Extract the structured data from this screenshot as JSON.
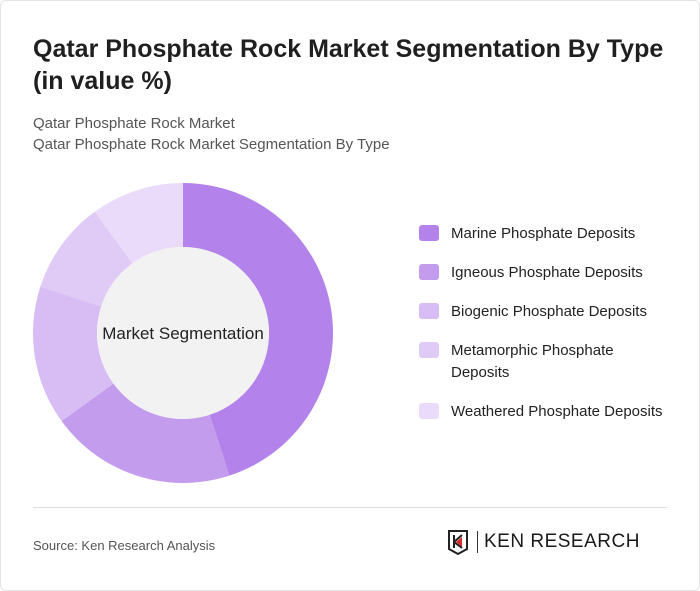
{
  "title": "Qatar Phosphate Rock Market Segmentation By Type (in value %)",
  "subtitle1": "Qatar Phosphate Rock Market",
  "subtitle2": "Qatar Phosphate Rock Market Segmentation By Type",
  "source": "Source: Ken Research Analysis",
  "logo_text": "KEN RESEARCH",
  "chart_data": {
    "type": "donut",
    "center_label": "Market Segmentation",
    "legend_position": "right",
    "categories": [
      "Marine Phosphate Deposits",
      "Igneous Phosphate Deposits",
      "Biogenic Phosphate Deposits",
      "Metamorphic Phosphate Deposits",
      "Weathered Phosphate Deposits"
    ],
    "values": [
      45,
      20,
      15,
      10,
      10
    ],
    "colors": [
      "#b383eb",
      "#c49cee",
      "#d7bdf4",
      "#e0cbf6",
      "#e9dbf9"
    ]
  }
}
